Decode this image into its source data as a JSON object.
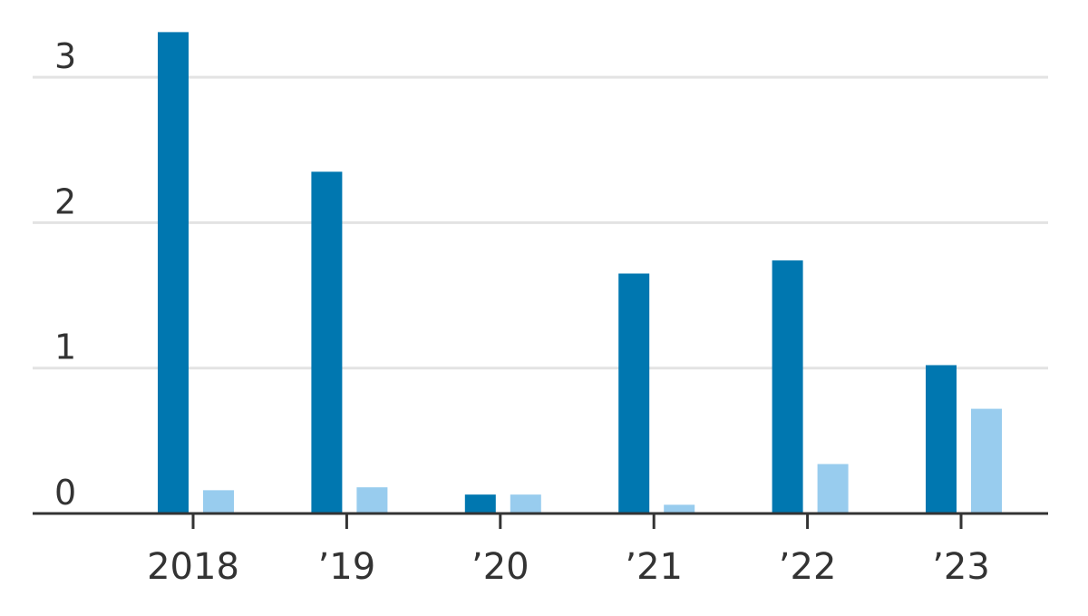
{
  "chart_data": {
    "type": "bar",
    "categories": [
      "2018",
      "’19",
      "’20",
      "’21",
      "’22",
      "’23"
    ],
    "series": [
      {
        "values": [
          3.31,
          2.35,
          0.13,
          1.65,
          1.74,
          1.02
        ],
        "color": "#0077b0"
      },
      {
        "values": [
          0.16,
          0.18,
          0.13,
          0.06,
          0.34,
          0.72
        ],
        "color": "#98ccee"
      }
    ],
    "yticks": [
      "0",
      "1",
      "2",
      "3"
    ],
    "ylim": [
      0,
      3.3
    ],
    "grid": true,
    "title": "",
    "xlabel": "",
    "ylabel": ""
  }
}
